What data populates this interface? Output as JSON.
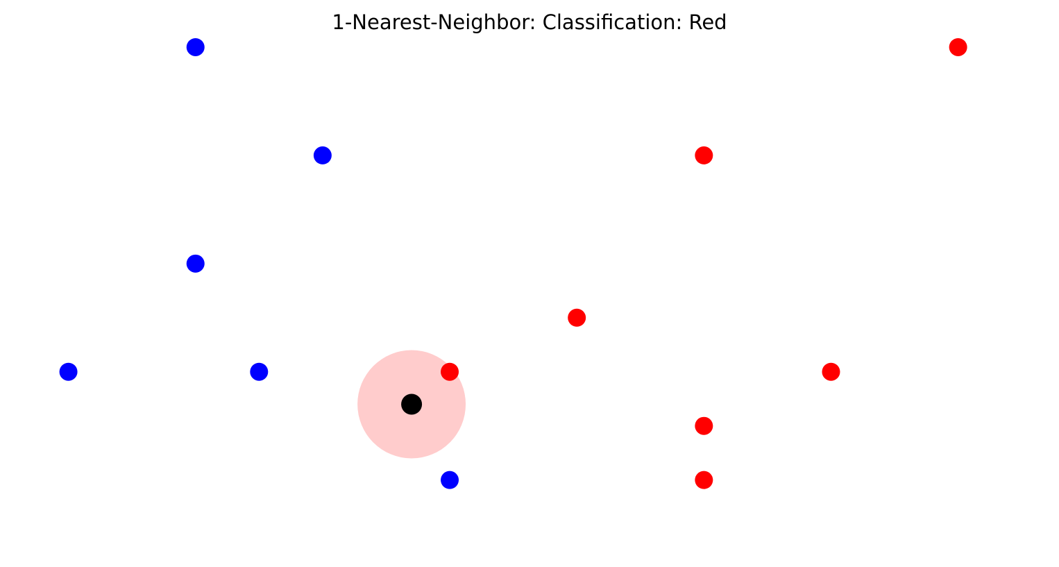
{
  "chart_data": {
    "type": "scatter",
    "title": "1-Nearest-Neighbor: Classification: Red",
    "k": 1,
    "classification": "Red",
    "axes_visible": false,
    "grid": false,
    "xlim": [
      -1,
      15.5
    ],
    "ylim": [
      -0.3,
      9.5
    ],
    "series": [
      {
        "class": "blue",
        "color": "#0000ff",
        "points": [
          [
            2,
            9
          ],
          [
            4,
            7
          ],
          [
            2,
            5
          ],
          [
            0,
            3
          ],
          [
            3,
            3
          ],
          [
            6,
            1
          ]
        ]
      },
      {
        "class": "red",
        "color": "#ff0000",
        "points": [
          [
            14,
            9
          ],
          [
            10,
            7
          ],
          [
            8,
            4
          ],
          [
            6,
            3
          ],
          [
            12,
            3
          ],
          [
            10,
            2
          ],
          [
            10,
            1
          ]
        ]
      }
    ],
    "query_point": {
      "x": 5.4,
      "y": 2.4,
      "color": "#000000"
    },
    "neighborhood": {
      "center": [
        5.4,
        2.4
      ],
      "radius": 1.0,
      "color": "#ffcccc"
    }
  }
}
